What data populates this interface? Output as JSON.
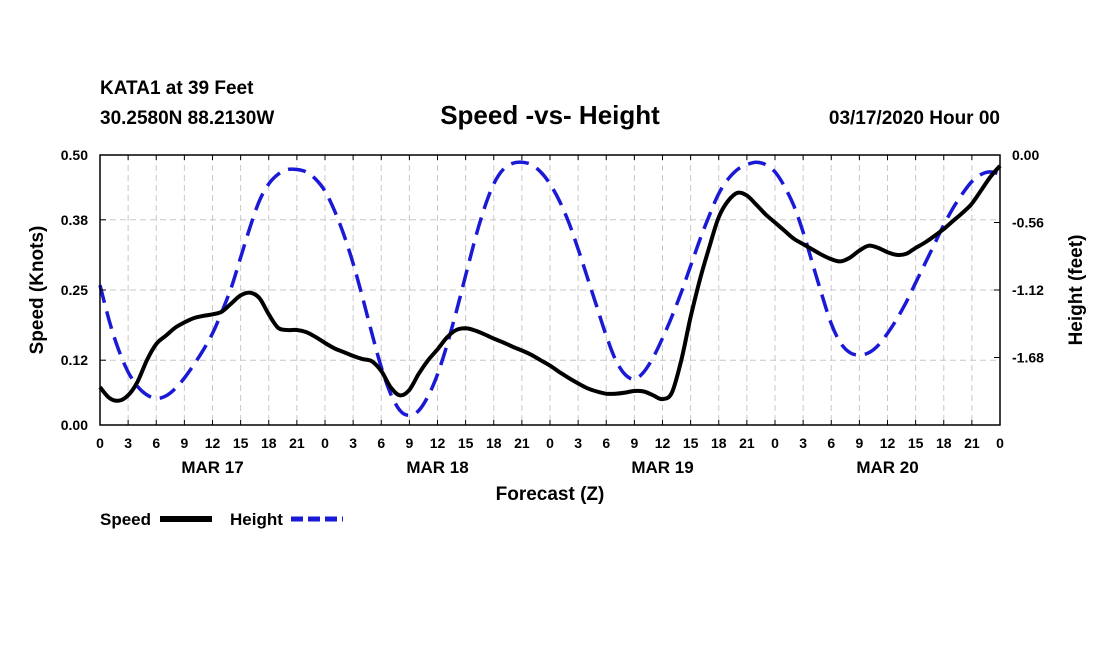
{
  "header": {
    "station": "KATA1 at 39 Feet",
    "coords": "30.2580N 88.2130W",
    "title": "Speed -vs- Height",
    "date": "03/17/2020 Hour 00"
  },
  "legend": {
    "speed_label": "Speed",
    "height_label": "Height"
  },
  "colors": {
    "speed": "#000000",
    "height": "#1a1ad6",
    "grid": "#c8c8c8"
  },
  "chart_data": {
    "type": "line",
    "title": "Speed -vs- Height",
    "xlabel": "Forecast (Z)",
    "ylabel": "Speed (Knots)",
    "y2label": "Height (feet)",
    "xlim": [
      0,
      96
    ],
    "ylim": [
      0,
      0.5
    ],
    "y2lim": [
      -2.24,
      0.0
    ],
    "x_ticks": [
      0,
      3,
      6,
      9,
      12,
      15,
      18,
      21,
      24,
      27,
      30,
      33,
      36,
      39,
      42,
      45,
      48,
      51,
      54,
      57,
      60,
      63,
      66,
      69,
      72,
      75,
      78,
      81,
      84,
      87,
      90,
      93,
      96
    ],
    "x_tick_labels": [
      "0",
      "3",
      "6",
      "9",
      "12",
      "15",
      "18",
      "21",
      "0",
      "3",
      "6",
      "9",
      "12",
      "15",
      "18",
      "21",
      "0",
      "3",
      "6",
      "9",
      "12",
      "15",
      "18",
      "21",
      "0",
      "3",
      "6",
      "9",
      "12",
      "15",
      "18",
      "21",
      "0"
    ],
    "day_labels": [
      {
        "x": 12,
        "label": "MAR 17"
      },
      {
        "x": 36,
        "label": "MAR 18"
      },
      {
        "x": 60,
        "label": "MAR 19"
      },
      {
        "x": 84,
        "label": "MAR 20"
      }
    ],
    "y_ticks": [
      0.0,
      0.12,
      0.25,
      0.38,
      0.5
    ],
    "y_tick_labels": [
      "0.00",
      "0.12",
      "0.25",
      "0.38",
      "0.50"
    ],
    "y2_ticks": [
      0.0,
      -0.56,
      -1.12,
      -1.68
    ],
    "y2_tick_labels": [
      "0.00",
      "-0.56",
      "-1.12",
      "-1.68"
    ],
    "grid": true,
    "series": [
      {
        "name": "Speed",
        "axis": "left",
        "x": [
          0,
          1,
          2,
          3,
          4,
          5,
          6,
          7,
          8,
          9,
          10,
          11,
          12,
          13,
          14,
          15,
          16,
          17,
          18,
          19,
          20,
          21,
          22,
          23,
          24,
          25,
          26,
          27,
          28,
          29,
          30,
          31,
          32,
          33,
          34,
          35,
          36,
          37,
          38,
          39,
          40,
          41,
          42,
          43,
          44,
          45,
          46,
          47,
          48,
          49,
          50,
          51,
          52,
          53,
          54,
          55,
          56,
          57,
          58,
          59,
          60,
          61,
          62,
          63,
          64,
          65,
          66,
          67,
          68,
          69,
          70,
          71,
          72,
          73,
          74,
          75,
          76,
          77,
          78,
          79,
          80,
          81,
          82,
          83,
          84,
          85,
          86,
          87,
          88,
          89,
          90,
          91,
          92,
          93,
          94,
          95,
          96
        ],
        "values": [
          0.07,
          0.05,
          0.045,
          0.055,
          0.08,
          0.12,
          0.15,
          0.165,
          0.18,
          0.19,
          0.198,
          0.202,
          0.205,
          0.21,
          0.225,
          0.24,
          0.245,
          0.235,
          0.205,
          0.18,
          0.176,
          0.176,
          0.172,
          0.163,
          0.152,
          0.142,
          0.135,
          0.128,
          0.122,
          0.118,
          0.1,
          0.07,
          0.055,
          0.065,
          0.095,
          0.12,
          0.14,
          0.162,
          0.176,
          0.179,
          0.175,
          0.168,
          0.16,
          0.153,
          0.145,
          0.138,
          0.13,
          0.12,
          0.11,
          0.098,
          0.087,
          0.077,
          0.068,
          0.062,
          0.058,
          0.058,
          0.06,
          0.063,
          0.062,
          0.055,
          0.048,
          0.06,
          0.12,
          0.2,
          0.27,
          0.33,
          0.385,
          0.415,
          0.43,
          0.425,
          0.408,
          0.39,
          0.375,
          0.36,
          0.345,
          0.335,
          0.325,
          0.315,
          0.307,
          0.303,
          0.31,
          0.323,
          0.332,
          0.328,
          0.32,
          0.315,
          0.317,
          0.328,
          0.338,
          0.35,
          0.363,
          0.378,
          0.393,
          0.41,
          0.435,
          0.46,
          0.48
        ]
      },
      {
        "name": "Height",
        "axis": "right",
        "x": [
          0,
          1,
          2,
          3,
          4,
          5,
          6,
          7,
          8,
          9,
          10,
          11,
          12,
          13,
          14,
          15,
          16,
          17,
          18,
          19,
          20,
          21,
          22,
          23,
          24,
          25,
          26,
          27,
          28,
          29,
          30,
          31,
          32,
          33,
          34,
          35,
          36,
          37,
          38,
          39,
          40,
          41,
          42,
          43,
          44,
          45,
          46,
          47,
          48,
          49,
          50,
          51,
          52,
          53,
          54,
          55,
          56,
          57,
          58,
          59,
          60,
          61,
          62,
          63,
          64,
          65,
          66,
          67,
          68,
          69,
          70,
          71,
          72,
          73,
          74,
          75,
          76,
          77,
          78,
          79,
          80,
          81,
          82,
          83,
          84,
          85,
          86,
          87,
          88,
          89,
          90,
          91,
          92,
          93,
          94,
          95,
          96
        ],
        "values": [
          -1.08,
          -1.38,
          -1.62,
          -1.8,
          -1.92,
          -1.99,
          -2.02,
          -2.0,
          -1.94,
          -1.85,
          -1.74,
          -1.62,
          -1.48,
          -1.3,
          -1.1,
          -0.85,
          -0.6,
          -0.38,
          -0.24,
          -0.16,
          -0.12,
          -0.12,
          -0.14,
          -0.2,
          -0.3,
          -0.46,
          -0.66,
          -0.9,
          -1.18,
          -1.48,
          -1.76,
          -1.98,
          -2.12,
          -2.16,
          -2.12,
          -2.0,
          -1.82,
          -1.58,
          -1.3,
          -1.0,
          -0.7,
          -0.44,
          -0.24,
          -0.12,
          -0.07,
          -0.06,
          -0.08,
          -0.14,
          -0.24,
          -0.38,
          -0.56,
          -0.78,
          -1.02,
          -1.26,
          -1.5,
          -1.7,
          -1.82,
          -1.86,
          -1.8,
          -1.68,
          -1.52,
          -1.34,
          -1.14,
          -0.92,
          -0.7,
          -0.5,
          -0.32,
          -0.2,
          -0.12,
          -0.08,
          -0.06,
          -0.08,
          -0.14,
          -0.26,
          -0.42,
          -0.64,
          -0.9,
          -1.16,
          -1.4,
          -1.56,
          -1.64,
          -1.66,
          -1.64,
          -1.58,
          -1.48,
          -1.36,
          -1.22,
          -1.06,
          -0.9,
          -0.74,
          -0.58,
          -0.44,
          -0.32,
          -0.22,
          -0.16,
          -0.14,
          -0.16
        ]
      }
    ]
  }
}
